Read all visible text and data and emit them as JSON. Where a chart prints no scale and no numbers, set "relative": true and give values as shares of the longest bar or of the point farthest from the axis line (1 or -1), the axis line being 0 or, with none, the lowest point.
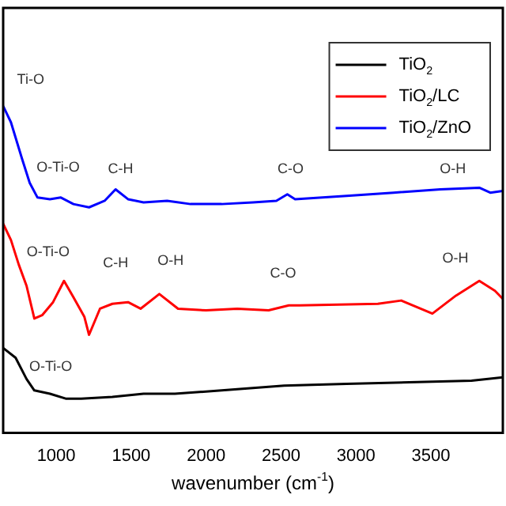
{
  "chart_data": {
    "type": "line",
    "relative": true,
    "xlabel": "wavenumber (cm$^{-1}$)",
    "xlim": [
      646,
      3980
    ],
    "xticks": [
      1000,
      1500,
      2000,
      2500,
      3000,
      3500
    ],
    "grid": false,
    "legend": "top right",
    "marker": "none",
    "line_style": "solid",
    "series": [
      {
        "name": "TiO$_{2}$",
        "color": "#000000",
        "x": [
          646,
          729,
          802,
          854,
          958,
          1063,
          1167,
          1375,
          1583,
          1792,
          2104,
          2521,
          2938,
          3355,
          3771,
          3980
        ],
        "values": [
          0.26,
          0.23,
          0.165,
          0.13,
          0.12,
          0.105,
          0.105,
          0.11,
          0.12,
          0.12,
          0.13,
          0.145,
          0.15,
          0.155,
          0.16,
          0.17
        ]
      },
      {
        "name": "TiO$_{2}$/LC",
        "color": "#ff0000",
        "x": [
          646,
          698,
          750,
          802,
          854,
          906,
          979,
          1052,
          1115,
          1188,
          1219,
          1292,
          1375,
          1479,
          1563,
          1688,
          1813,
          2000,
          2208,
          2417,
          2552,
          2625,
          3146,
          3302,
          3510,
          3667,
          3823,
          3927,
          3980
        ],
        "values": [
          0.64,
          0.59,
          0.515,
          0.45,
          0.35,
          0.36,
          0.4,
          0.465,
          0.415,
          0.355,
          0.3,
          0.38,
          0.395,
          0.4,
          0.38,
          0.425,
          0.38,
          0.375,
          0.38,
          0.375,
          0.39,
          0.39,
          0.395,
          0.405,
          0.365,
          0.42,
          0.465,
          0.435,
          0.41
        ]
      },
      {
        "name": "TiO$_{2}$/ZnO",
        "color": "#0000ff",
        "x": [
          646,
          698,
          771,
          823,
          875,
          958,
          1031,
          1115,
          1219,
          1323,
          1396,
          1479,
          1583,
          1740,
          1896,
          2104,
          2313,
          2469,
          2542,
          2594,
          2938,
          3250,
          3563,
          3823,
          3896,
          3980
        ],
        "values": [
          1.0,
          0.95,
          0.84,
          0.765,
          0.72,
          0.715,
          0.72,
          0.7,
          0.69,
          0.71,
          0.745,
          0.715,
          0.705,
          0.71,
          0.7,
          0.7,
          0.705,
          0.71,
          0.73,
          0.715,
          0.725,
          0.735,
          0.745,
          0.75,
          0.735,
          0.74
        ]
      }
    ],
    "annotations": [
      "Ti-O",
      "O-Ti-O",
      "C-H",
      "C-O",
      "O-H",
      "O-Ti-O",
      "C-H",
      "O-H",
      "C-O",
      "O-H",
      "O-Ti-O"
    ]
  }
}
